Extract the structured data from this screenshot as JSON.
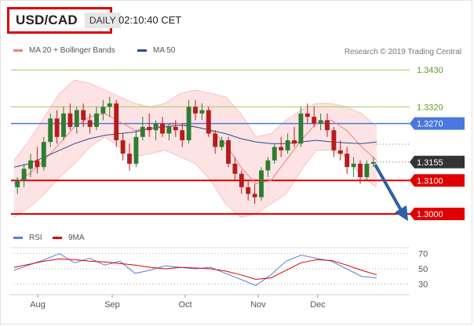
{
  "header": {
    "symbol": "USD/CAD",
    "period": "DAILY",
    "time": "02:10:40 CET"
  },
  "legend_top": [
    {
      "label": "MA 20 + Bollinger Bands",
      "color": "#f08080"
    },
    {
      "label": "MA 50",
      "color": "#2a4d8f"
    }
  ],
  "credit": "Research © 2019 Trading Central",
  "legend_bottom": [
    {
      "label": "RSI",
      "color": "#5b7fd6"
    },
    {
      "label": "9MA",
      "color": "#e00000"
    }
  ],
  "colors": {
    "up": "#2e7d32",
    "down": "#b71c1c",
    "resistance": "#9ccc65",
    "support": "#e00000",
    "pivot": "#4a78e0",
    "price": "#333333",
    "arrow": "#2f5fa5"
  },
  "chart_data": [
    {
      "type": "candlestick",
      "title": "USD/CAD",
      "x_axis_labels": [
        "Aug",
        "Sep",
        "Oct",
        "Nov",
        "Dec"
      ],
      "y_labels": [
        "1.3430",
        "1.3320",
        "1.3270",
        "1.3155",
        "1.3100",
        "1.3000"
      ],
      "ylim": [
        1.2965,
        1.3475
      ],
      "levels": [
        {
          "value": 1.343,
          "label": "1.3430",
          "kind": "resistance"
        },
        {
          "value": 1.332,
          "label": "1.3320",
          "kind": "resistance"
        },
        {
          "value": 1.327,
          "label": "1.3270",
          "kind": "pivot"
        },
        {
          "value": 1.3155,
          "label": "1.3155",
          "kind": "last-price"
        },
        {
          "value": 1.31,
          "label": "1.3100",
          "kind": "support"
        },
        {
          "value": 1.3,
          "label": "1.3000",
          "kind": "support"
        }
      ],
      "ma20_bollinger": {
        "mid": [
          1.309,
          1.312,
          1.316,
          1.321,
          1.326,
          1.329,
          1.33,
          1.3275,
          1.325,
          1.3255,
          1.3265,
          1.327,
          1.326,
          1.325,
          1.321,
          1.314,
          1.309,
          1.31,
          1.316,
          1.322,
          1.327,
          1.328,
          1.325,
          1.32,
          1.316
        ],
        "upper": [
          1.316,
          1.322,
          1.329,
          1.336,
          1.34,
          1.339,
          1.337,
          1.335,
          1.333,
          1.332,
          1.333,
          1.336,
          1.337,
          1.336,
          1.335,
          1.33,
          1.323,
          1.324,
          1.328,
          1.331,
          1.333,
          1.333,
          1.332,
          1.33,
          1.326
        ],
        "lower": [
          1.299,
          1.302,
          1.306,
          1.311,
          1.315,
          1.32,
          1.323,
          1.32,
          1.317,
          1.318,
          1.319,
          1.317,
          1.315,
          1.31,
          1.303,
          1.299,
          1.3,
          1.303,
          1.306,
          1.313,
          1.319,
          1.319,
          1.317,
          1.311,
          1.308
        ]
      },
      "ma50": [
        1.314,
        1.315,
        1.317,
        1.319,
        1.321,
        1.3225,
        1.3235,
        1.324,
        1.3245,
        1.3255,
        1.326,
        1.3265,
        1.326,
        1.325,
        1.324,
        1.3225,
        1.3215,
        1.321,
        1.321,
        1.3215,
        1.322,
        1.3215,
        1.3212,
        1.321,
        1.3215
      ]
    },
    {
      "type": "line",
      "title": "RSI",
      "ylim": [
        20,
        80
      ],
      "y_ticks": [
        30,
        50,
        70
      ],
      "series": [
        {
          "name": "RSI",
          "values": [
            48,
            55,
            62,
            70,
            58,
            64,
            55,
            60,
            44,
            48,
            54,
            52,
            50,
            52,
            44,
            36,
            28,
            42,
            60,
            68,
            64,
            60,
            50,
            40,
            38
          ]
        },
        {
          "name": "9MA",
          "values": [
            52,
            56,
            60,
            63,
            62,
            60,
            59,
            57,
            55,
            52,
            50,
            52,
            51,
            50,
            47,
            42,
            36,
            38,
            48,
            58,
            62,
            61,
            55,
            48,
            42
          ]
        }
      ]
    }
  ],
  "candles": [
    {
      "o": 1.308,
      "h": 1.311,
      "l": 1.306,
      "c": 1.31
    },
    {
      "o": 1.31,
      "h": 1.315,
      "l": 1.308,
      "c": 1.3135
    },
    {
      "o": 1.3135,
      "h": 1.318,
      "l": 1.311,
      "c": 1.316
    },
    {
      "o": 1.316,
      "h": 1.32,
      "l": 1.312,
      "c": 1.314
    },
    {
      "o": 1.314,
      "h": 1.323,
      "l": 1.313,
      "c": 1.3215
    },
    {
      "o": 1.3215,
      "h": 1.33,
      "l": 1.32,
      "c": 1.3285
    },
    {
      "o": 1.3285,
      "h": 1.331,
      "l": 1.321,
      "c": 1.323
    },
    {
      "o": 1.323,
      "h": 1.332,
      "l": 1.322,
      "c": 1.33
    },
    {
      "o": 1.33,
      "h": 1.333,
      "l": 1.325,
      "c": 1.326
    },
    {
      "o": 1.326,
      "h": 1.332,
      "l": 1.324,
      "c": 1.331
    },
    {
      "o": 1.331,
      "h": 1.333,
      "l": 1.326,
      "c": 1.328
    },
    {
      "o": 1.328,
      "h": 1.33,
      "l": 1.324,
      "c": 1.326
    },
    {
      "o": 1.326,
      "h": 1.332,
      "l": 1.325,
      "c": 1.33
    },
    {
      "o": 1.33,
      "h": 1.334,
      "l": 1.328,
      "c": 1.332
    },
    {
      "o": 1.332,
      "h": 1.335,
      "l": 1.329,
      "c": 1.333
    },
    {
      "o": 1.333,
      "h": 1.334,
      "l": 1.32,
      "c": 1.322
    },
    {
      "o": 1.322,
      "h": 1.324,
      "l": 1.316,
      "c": 1.318
    },
    {
      "o": 1.318,
      "h": 1.321,
      "l": 1.313,
      "c": 1.315
    },
    {
      "o": 1.315,
      "h": 1.325,
      "l": 1.314,
      "c": 1.323
    },
    {
      "o": 1.323,
      "h": 1.329,
      "l": 1.322,
      "c": 1.326
    },
    {
      "o": 1.326,
      "h": 1.33,
      "l": 1.323,
      "c": 1.325
    },
    {
      "o": 1.325,
      "h": 1.328,
      "l": 1.322,
      "c": 1.327
    },
    {
      "o": 1.327,
      "h": 1.329,
      "l": 1.323,
      "c": 1.324
    },
    {
      "o": 1.324,
      "h": 1.327,
      "l": 1.322,
      "c": 1.326
    },
    {
      "o": 1.326,
      "h": 1.328,
      "l": 1.323,
      "c": 1.325
    },
    {
      "o": 1.325,
      "h": 1.327,
      "l": 1.32,
      "c": 1.322
    },
    {
      "o": 1.322,
      "h": 1.334,
      "l": 1.321,
      "c": 1.332
    },
    {
      "o": 1.332,
      "h": 1.334,
      "l": 1.328,
      "c": 1.33
    },
    {
      "o": 1.33,
      "h": 1.333,
      "l": 1.328,
      "c": 1.331
    },
    {
      "o": 1.331,
      "h": 1.332,
      "l": 1.323,
      "c": 1.324
    },
    {
      "o": 1.324,
      "h": 1.325,
      "l": 1.318,
      "c": 1.32
    },
    {
      "o": 1.32,
      "h": 1.323,
      "l": 1.319,
      "c": 1.322
    },
    {
      "o": 1.322,
      "h": 1.323,
      "l": 1.314,
      "c": 1.315
    },
    {
      "o": 1.315,
      "h": 1.317,
      "l": 1.31,
      "c": 1.312
    },
    {
      "o": 1.312,
      "h": 1.313,
      "l": 1.306,
      "c": 1.308
    },
    {
      "o": 1.308,
      "h": 1.31,
      "l": 1.304,
      "c": 1.306
    },
    {
      "o": 1.306,
      "h": 1.309,
      "l": 1.303,
      "c": 1.305
    },
    {
      "o": 1.305,
      "h": 1.314,
      "l": 1.304,
      "c": 1.313
    },
    {
      "o": 1.313,
      "h": 1.317,
      "l": 1.311,
      "c": 1.316
    },
    {
      "o": 1.316,
      "h": 1.321,
      "l": 1.315,
      "c": 1.32
    },
    {
      "o": 1.32,
      "h": 1.323,
      "l": 1.317,
      "c": 1.319
    },
    {
      "o": 1.319,
      "h": 1.324,
      "l": 1.318,
      "c": 1.322
    },
    {
      "o": 1.322,
      "h": 1.326,
      "l": 1.32,
      "c": 1.321
    },
    {
      "o": 1.321,
      "h": 1.332,
      "l": 1.32,
      "c": 1.33
    },
    {
      "o": 1.33,
      "h": 1.333,
      "l": 1.327,
      "c": 1.329
    },
    {
      "o": 1.329,
      "h": 1.332,
      "l": 1.326,
      "c": 1.327
    },
    {
      "o": 1.327,
      "h": 1.33,
      "l": 1.325,
      "c": 1.328
    },
    {
      "o": 1.328,
      "h": 1.33,
      "l": 1.323,
      "c": 1.325
    },
    {
      "o": 1.325,
      "h": 1.326,
      "l": 1.317,
      "c": 1.319
    },
    {
      "o": 1.319,
      "h": 1.322,
      "l": 1.316,
      "c": 1.318
    },
    {
      "o": 1.318,
      "h": 1.32,
      "l": 1.312,
      "c": 1.314
    },
    {
      "o": 1.314,
      "h": 1.317,
      "l": 1.311,
      "c": 1.315
    },
    {
      "o": 1.315,
      "h": 1.316,
      "l": 1.309,
      "c": 1.311
    },
    {
      "o": 1.311,
      "h": 1.316,
      "l": 1.31,
      "c": 1.315
    },
    {
      "o": 1.315,
      "h": 1.317,
      "l": 1.314,
      "c": 1.3155
    }
  ]
}
